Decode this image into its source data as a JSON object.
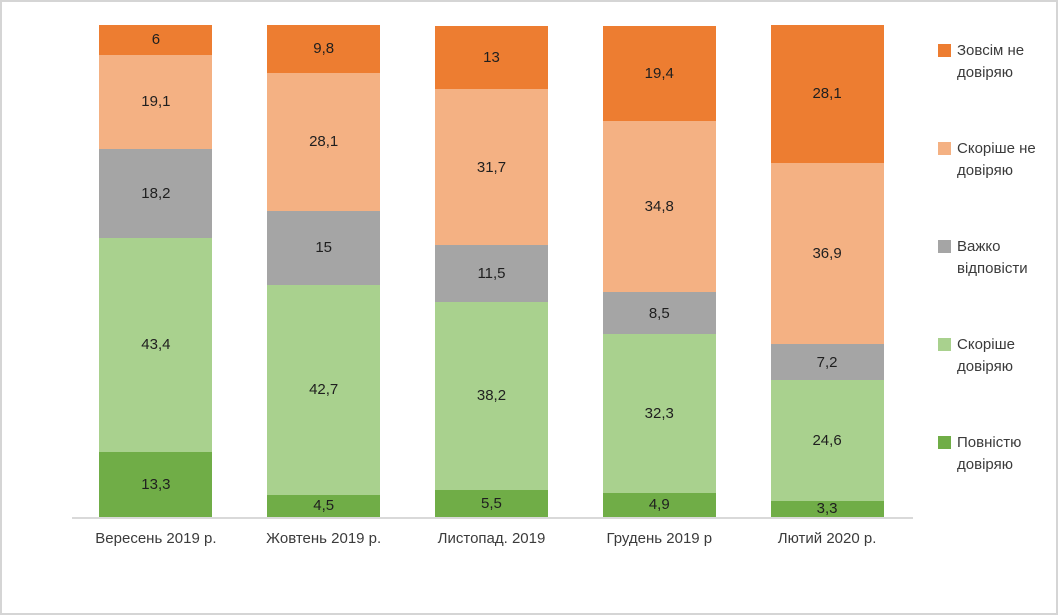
{
  "chart_data": {
    "type": "bar",
    "subtype": "stacked-percentage-column",
    "title": "",
    "xlabel": "",
    "ylabel": "",
    "grid": false,
    "ylim": [
      0,
      100
    ],
    "value_label_decimal_separator": ",",
    "categories": [
      "Вересень 2019 р.",
      "Жовтень 2019 р.",
      "Листопад. 2019",
      "Грудень 2019 р",
      "Лютий 2020 р."
    ],
    "series": [
      {
        "name": "Повністю довіряю",
        "color": "#70AD47",
        "values": [
          13.3,
          4.5,
          5.5,
          4.9,
          3.3
        ]
      },
      {
        "name": "Скоріше довіряю",
        "color": "#A9D18E",
        "values": [
          43.4,
          42.7,
          38.2,
          32.3,
          24.6
        ]
      },
      {
        "name": "Важко відповісти",
        "color": "#A5A5A5",
        "values": [
          18.2,
          15,
          11.5,
          8.5,
          7.2
        ]
      },
      {
        "name": "Скоріше  не довіряю",
        "color": "#F4B183",
        "values": [
          19.1,
          28.1,
          31.7,
          34.8,
          36.9
        ]
      },
      {
        "name": "Зовсім не довіряю",
        "color": "#ED7D31",
        "values": [
          6,
          9.8,
          13,
          19.4,
          28.1
        ]
      }
    ],
    "legend": {
      "position": "right",
      "order_top_to_bottom": [
        "Зовсім не довіряю",
        "Скоріше  не довіряю",
        "Важко відповісти",
        "Скоріше довіряю",
        "Повністю довіряю"
      ]
    }
  }
}
